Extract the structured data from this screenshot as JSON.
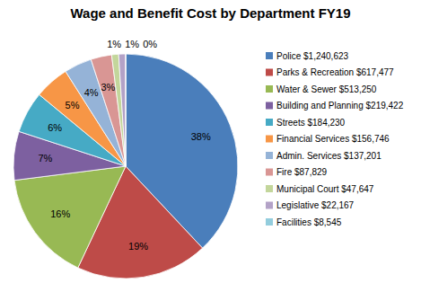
{
  "chart_data": {
    "type": "pie",
    "title": "Wage and Benefit Cost by Department FY19",
    "categories": [
      "Police $1,240,623",
      "Parks & Recreation $617,477",
      "Water & Sewer $513,250",
      "Building and Planning $219,422",
      "Streets $184,230",
      "Financial Services $156,746",
      "Admin. Services $137,201",
      "Fire $87,829",
      "Municipal Court $47,647",
      "Legislative $22,167",
      "Facilities $8,545"
    ],
    "values": [
      38,
      19,
      16,
      7,
      6,
      5,
      4,
      3,
      1,
      1,
      0
    ],
    "value_labels": [
      "38%",
      "19%",
      "16%",
      "7%",
      "6%",
      "5%",
      "4%",
      "3%",
      "1%",
      "1%",
      "0%"
    ],
    "colors": [
      "#4a7ebb",
      "#be4b48",
      "#98b954",
      "#7d60a0",
      "#46aac5",
      "#f79646",
      "#95b3d7",
      "#d99694",
      "#c3d69b",
      "#b3a2c7",
      "#93cddd"
    ],
    "data_labels": true,
    "legend": "right"
  }
}
